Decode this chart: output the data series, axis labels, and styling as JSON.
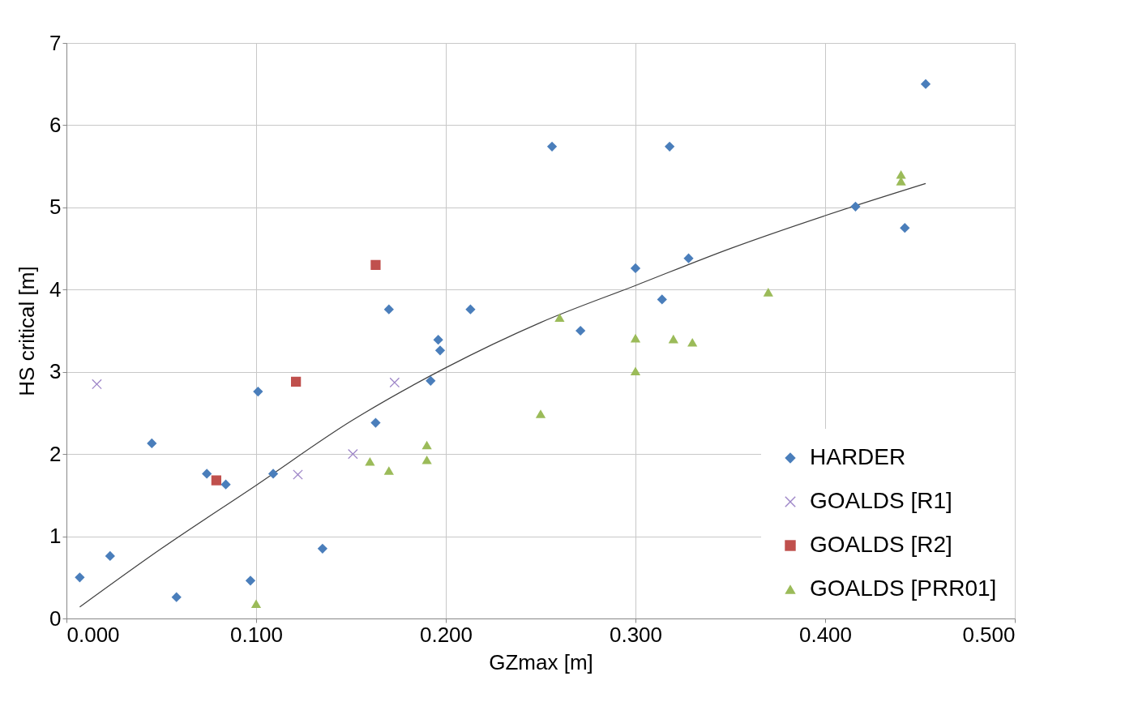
{
  "chart_data": {
    "type": "scatter",
    "xlabel": "GZmax [m]",
    "ylabel": "HS critical [m]",
    "xlim": [
      0,
      0.5
    ],
    "ylim": [
      0,
      7
    ],
    "xticks": [
      {
        "value": 0,
        "label": "0.000"
      },
      {
        "value": 0.1,
        "label": "0.100"
      },
      {
        "value": 0.2,
        "label": "0.200"
      },
      {
        "value": 0.3,
        "label": "0.300"
      },
      {
        "value": 0.4,
        "label": "0.400"
      },
      {
        "value": 0.5,
        "label": "0.500"
      }
    ],
    "yticks": [
      0,
      1,
      2,
      3,
      4,
      5,
      6,
      7
    ],
    "grid": true,
    "legend": "bottom right",
    "series": [
      {
        "name": "HARDER",
        "color": "#4a7ebb",
        "marker": "diamond",
        "x": [
          0.007,
          0.023,
          0.045,
          0.058,
          0.074,
          0.084,
          0.097,
          0.101,
          0.109,
          0.135,
          0.163,
          0.17,
          0.192,
          0.196,
          0.197,
          0.213,
          0.256,
          0.271,
          0.3,
          0.314,
          0.318,
          0.328,
          0.416,
          0.442,
          0.453
        ],
        "values": [
          0.5,
          0.76,
          2.13,
          0.26,
          1.76,
          1.63,
          0.46,
          2.76,
          1.76,
          0.85,
          2.38,
          3.76,
          2.89,
          3.39,
          3.26,
          3.76,
          5.74,
          3.5,
          4.26,
          3.88,
          5.74,
          4.38,
          5.01,
          4.75,
          6.5
        ]
      },
      {
        "name": "GOALDS [R1]",
        "color": "#9e86c8",
        "marker": "cross",
        "x": [
          0.016,
          0.122,
          0.151,
          0.173
        ],
        "values": [
          2.85,
          1.75,
          2.0,
          2.87
        ]
      },
      {
        "name": "GOALDS [R2]",
        "color": "#c0504d",
        "marker": "square",
        "x": [
          0.079,
          0.121,
          0.163
        ],
        "values": [
          1.68,
          2.88,
          4.3
        ]
      },
      {
        "name": "GOALDS [PRR01]",
        "color": "#9bbb59",
        "marker": "triangle",
        "x": [
          0.1,
          0.16,
          0.17,
          0.19,
          0.19,
          0.25,
          0.26,
          0.3,
          0.3,
          0.32,
          0.33,
          0.37,
          0.44,
          0.44
        ],
        "values": [
          0.18,
          1.91,
          1.8,
          2.11,
          1.93,
          2.49,
          3.66,
          3.41,
          3.01,
          3.4,
          3.36,
          3.97,
          5.4,
          5.32
        ]
      },
      {
        "type": "line",
        "color": "#404040",
        "marker": "none",
        "x": [
          0.007,
          0.05,
          0.1,
          0.15,
          0.2,
          0.25,
          0.3,
          0.35,
          0.4,
          0.453
        ],
        "values": [
          0.14,
          0.85,
          1.62,
          2.4,
          3.05,
          3.6,
          4.05,
          4.5,
          4.9,
          5.29
        ]
      }
    ]
  }
}
